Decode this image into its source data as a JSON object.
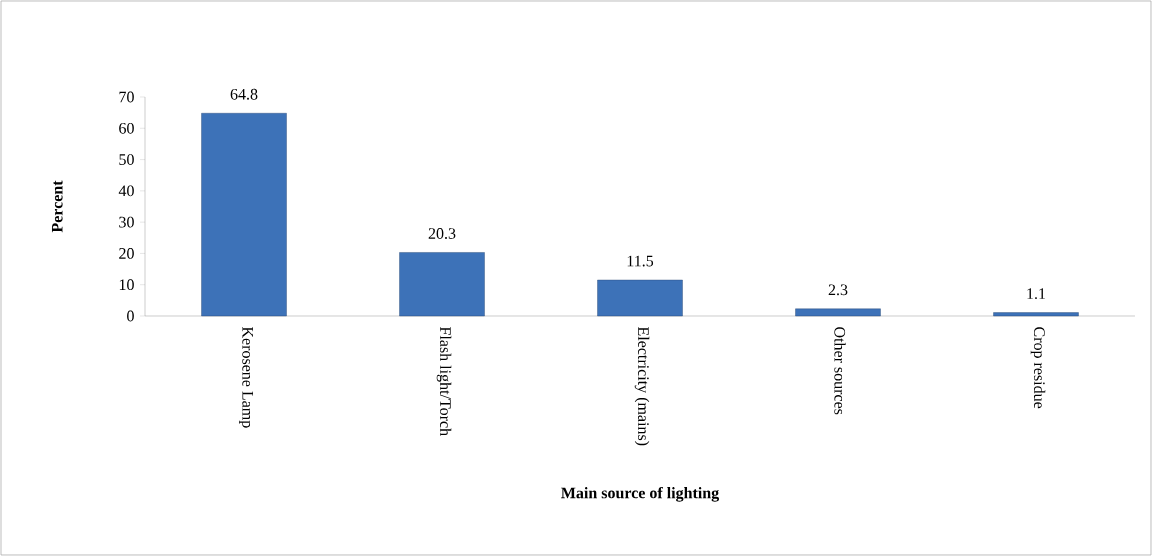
{
  "chart_data": {
    "type": "bar",
    "xlabel": "Main source of lighting",
    "ylabel": "Percent",
    "categories": [
      "Kerosene Lamp",
      "Flash light/Torch",
      "Electricity (mains)",
      "Other sources",
      "Crop residue"
    ],
    "values": [
      64.8,
      20.3,
      11.5,
      2.3,
      1.1
    ],
    "color": "#3d72b8",
    "ylim": [
      0,
      70
    ],
    "yticks": [
      0,
      10,
      20,
      30,
      40,
      50,
      60,
      70
    ],
    "data_labels": true,
    "grid": false
  }
}
